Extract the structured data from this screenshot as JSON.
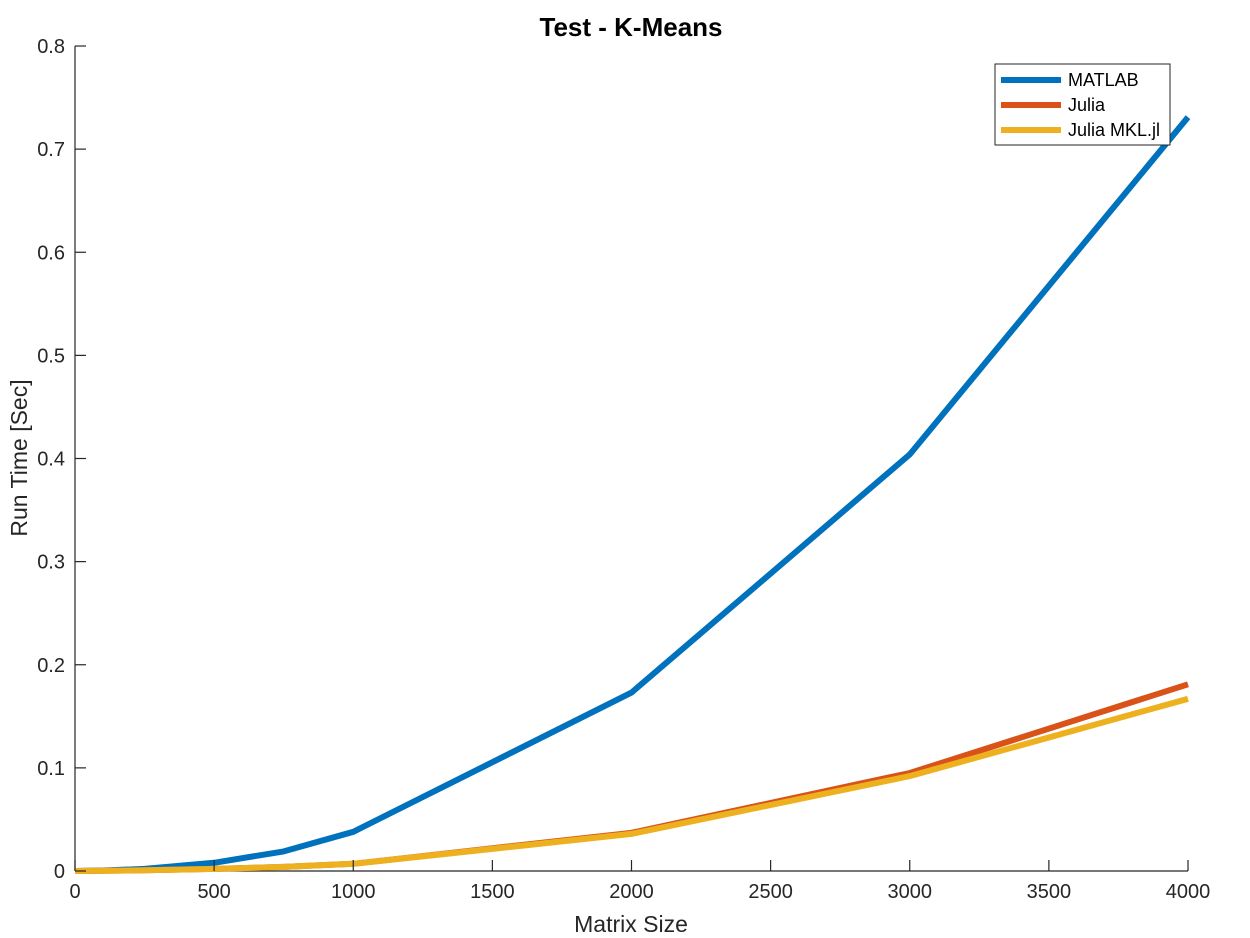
{
  "chart_data": {
    "type": "line",
    "title": "Test - K-Means",
    "xlabel": "Matrix Size",
    "ylabel": "Run Time  [Sec]",
    "xlim": [
      0,
      4000
    ],
    "ylim": [
      0,
      0.8
    ],
    "xticks": [
      0,
      500,
      1000,
      1500,
      2000,
      2500,
      3000,
      3500,
      4000
    ],
    "xtick_labels": [
      "0",
      "500",
      "1000",
      "1500",
      "2000",
      "2500",
      "3000",
      "3500",
      "4000"
    ],
    "yticks": [
      0,
      0.1,
      0.2,
      0.3,
      0.4,
      0.5,
      0.6,
      0.7,
      0.8
    ],
    "ytick_labels": [
      "0",
      "0.1",
      "0.2",
      "0.3",
      "0.4",
      "0.5",
      "0.6",
      "0.7",
      "0.8"
    ],
    "grid": false,
    "legend_position": "top-right",
    "x": [
      0,
      100,
      250,
      500,
      750,
      1000,
      2000,
      3000,
      4000
    ],
    "series": [
      {
        "name": "MATLAB",
        "color": "#0072BD",
        "values": [
          0.0,
          0.0005,
          0.002,
          0.008,
          0.019,
          0.038,
          0.173,
          0.404,
          0.731
        ]
      },
      {
        "name": "Julia",
        "color": "#D95319",
        "values": [
          0.0,
          0.0002,
          0.0008,
          0.002,
          0.004,
          0.007,
          0.037,
          0.095,
          0.181
        ]
      },
      {
        "name": "Julia MKL.jl",
        "color": "#EDB120",
        "values": [
          0.0,
          0.0002,
          0.0007,
          0.002,
          0.004,
          0.007,
          0.036,
          0.092,
          0.167
        ]
      }
    ]
  }
}
